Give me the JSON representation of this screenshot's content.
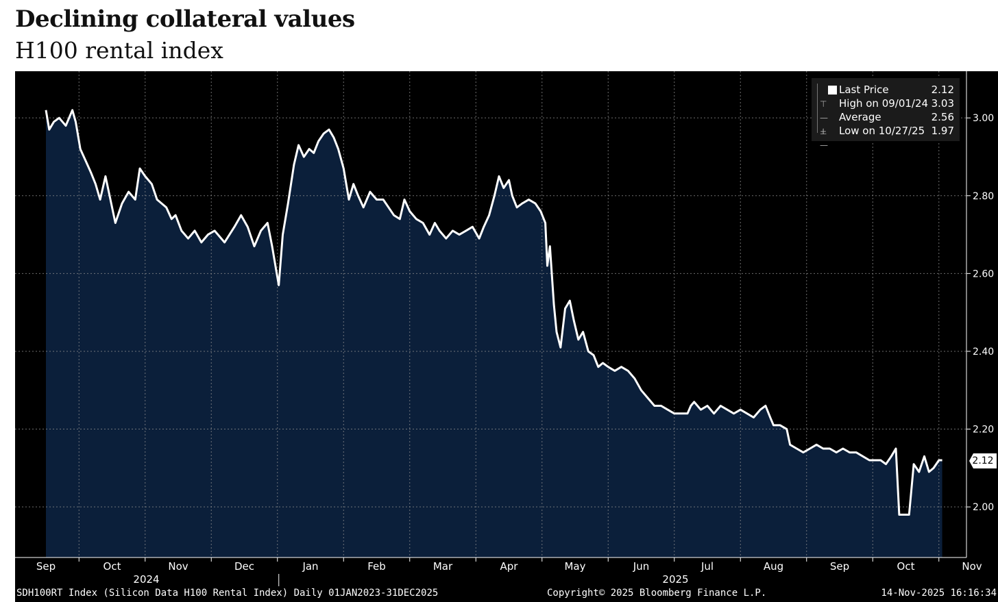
{
  "header": {
    "title": "Declining collateral values",
    "subtitle": "H100 rental index"
  },
  "legend": {
    "items": [
      {
        "label": "Last Price",
        "value": "2.12"
      },
      {
        "label": "High on 09/01/24",
        "value": "3.03"
      },
      {
        "label": "Average",
        "value": "2.56"
      },
      {
        "label": "Low on 10/27/25",
        "value": "1.97"
      }
    ]
  },
  "last_badge": "2.12",
  "footer": {
    "left": "SDH100RT Index (Silicon Data H100 Rental Index) Daily 01JAN2023-31DEC2025",
    "center": "Copyright© 2025 Bloomberg Finance L.P.",
    "right": "14-Nov-2025 16:16:34"
  },
  "colors": {
    "background": "#000000",
    "area_fill": "#0b1f3a",
    "line": "#ffffff",
    "grid": "#8a8a8a"
  },
  "chart_data": {
    "type": "area",
    "title": "Declining collateral values",
    "subtitle": "H100 rental index",
    "y_ticks": [
      2.0,
      2.2,
      2.4,
      2.6,
      2.8,
      3.0
    ],
    "ylim": [
      1.87,
      3.12
    ],
    "y_axis_side": "right",
    "grid": true,
    "legend_position": "top-right",
    "x_tick_labels": [
      "Sep",
      "Oct",
      "Nov",
      "Dec",
      "Jan",
      "Feb",
      "Mar",
      "Apr",
      "May",
      "Jun",
      "Jul",
      "Aug",
      "Sep",
      "Oct",
      "Nov"
    ],
    "year_labels": [
      {
        "label": "2024",
        "under_month_index": 1
      },
      {
        "label": "2025",
        "under_month_index": 9
      }
    ],
    "x_month_start": "2024-09-01",
    "series": [
      {
        "name": "Last Price",
        "points": [
          [
            0,
            3.02
          ],
          [
            0.05,
            2.97
          ],
          [
            0.12,
            2.99
          ],
          [
            0.2,
            3.0
          ],
          [
            0.3,
            2.98
          ],
          [
            0.4,
            3.02
          ],
          [
            0.45,
            2.99
          ],
          [
            0.52,
            2.92
          ],
          [
            0.6,
            2.89
          ],
          [
            0.68,
            2.86
          ],
          [
            0.75,
            2.83
          ],
          [
            0.82,
            2.79
          ],
          [
            0.9,
            2.85
          ],
          [
            0.95,
            2.81
          ],
          [
            1.05,
            2.73
          ],
          [
            1.15,
            2.78
          ],
          [
            1.25,
            2.81
          ],
          [
            1.35,
            2.79
          ],
          [
            1.42,
            2.87
          ],
          [
            1.5,
            2.85
          ],
          [
            1.6,
            2.83
          ],
          [
            1.68,
            2.79
          ],
          [
            1.75,
            2.78
          ],
          [
            1.82,
            2.77
          ],
          [
            1.9,
            2.74
          ],
          [
            1.96,
            2.75
          ],
          [
            2.05,
            2.71
          ],
          [
            2.15,
            2.69
          ],
          [
            2.25,
            2.71
          ],
          [
            2.35,
            2.68
          ],
          [
            2.45,
            2.7
          ],
          [
            2.55,
            2.71
          ],
          [
            2.7,
            2.68
          ],
          [
            2.85,
            2.72
          ],
          [
            2.95,
            2.75
          ],
          [
            3.05,
            2.72
          ],
          [
            3.15,
            2.67
          ],
          [
            3.25,
            2.71
          ],
          [
            3.35,
            2.73
          ],
          [
            3.42,
            2.67
          ],
          [
            3.48,
            2.61
          ],
          [
            3.52,
            2.57
          ],
          [
            3.58,
            2.7
          ],
          [
            3.66,
            2.78
          ],
          [
            3.75,
            2.88
          ],
          [
            3.82,
            2.93
          ],
          [
            3.9,
            2.9
          ],
          [
            3.98,
            2.92
          ],
          [
            4.05,
            2.91
          ],
          [
            4.12,
            2.94
          ],
          [
            4.2,
            2.96
          ],
          [
            4.28,
            2.97
          ],
          [
            4.35,
            2.95
          ],
          [
            4.42,
            2.92
          ],
          [
            4.5,
            2.87
          ],
          [
            4.58,
            2.79
          ],
          [
            4.65,
            2.83
          ],
          [
            4.72,
            2.8
          ],
          [
            4.8,
            2.77
          ],
          [
            4.9,
            2.81
          ],
          [
            5.0,
            2.79
          ],
          [
            5.1,
            2.79
          ],
          [
            5.18,
            2.77
          ],
          [
            5.26,
            2.75
          ],
          [
            5.35,
            2.74
          ],
          [
            5.42,
            2.79
          ],
          [
            5.5,
            2.76
          ],
          [
            5.6,
            2.74
          ],
          [
            5.7,
            2.73
          ],
          [
            5.8,
            2.7
          ],
          [
            5.88,
            2.73
          ],
          [
            5.95,
            2.71
          ],
          [
            6.05,
            2.69
          ],
          [
            6.15,
            2.71
          ],
          [
            6.25,
            2.7
          ],
          [
            6.35,
            2.71
          ],
          [
            6.45,
            2.72
          ],
          [
            6.55,
            2.69
          ],
          [
            6.62,
            2.72
          ],
          [
            6.7,
            2.75
          ],
          [
            6.78,
            2.8
          ],
          [
            6.85,
            2.85
          ],
          [
            6.92,
            2.82
          ],
          [
            7.0,
            2.84
          ],
          [
            7.05,
            2.8
          ],
          [
            7.12,
            2.77
          ],
          [
            7.2,
            2.78
          ],
          [
            7.3,
            2.79
          ],
          [
            7.4,
            2.78
          ],
          [
            7.48,
            2.76
          ],
          [
            7.55,
            2.73
          ],
          [
            7.58,
            2.62
          ],
          [
            7.62,
            2.67
          ],
          [
            7.68,
            2.52
          ],
          [
            7.72,
            2.45
          ],
          [
            7.78,
            2.41
          ],
          [
            7.85,
            2.51
          ],
          [
            7.92,
            2.53
          ],
          [
            7.98,
            2.48
          ],
          [
            8.05,
            2.43
          ],
          [
            8.12,
            2.45
          ],
          [
            8.2,
            2.4
          ],
          [
            8.28,
            2.39
          ],
          [
            8.35,
            2.36
          ],
          [
            8.42,
            2.37
          ],
          [
            8.5,
            2.36
          ],
          [
            8.6,
            2.35
          ],
          [
            8.7,
            2.36
          ],
          [
            8.8,
            2.35
          ],
          [
            8.9,
            2.33
          ],
          [
            9.0,
            2.3
          ],
          [
            9.1,
            2.28
          ],
          [
            9.2,
            2.26
          ],
          [
            9.3,
            2.26
          ],
          [
            9.4,
            2.25
          ],
          [
            9.5,
            2.24
          ],
          [
            9.6,
            2.24
          ],
          [
            9.7,
            2.24
          ],
          [
            9.75,
            2.26
          ],
          [
            9.8,
            2.27
          ],
          [
            9.9,
            2.25
          ],
          [
            10.0,
            2.26
          ],
          [
            10.1,
            2.24
          ],
          [
            10.2,
            2.26
          ],
          [
            10.3,
            2.25
          ],
          [
            10.4,
            2.24
          ],
          [
            10.5,
            2.25
          ],
          [
            10.6,
            2.24
          ],
          [
            10.7,
            2.23
          ],
          [
            10.8,
            2.25
          ],
          [
            10.88,
            2.26
          ],
          [
            10.95,
            2.23
          ],
          [
            11.0,
            2.21
          ],
          [
            11.1,
            2.21
          ],
          [
            11.2,
            2.2
          ],
          [
            11.25,
            2.16
          ],
          [
            11.35,
            2.15
          ],
          [
            11.45,
            2.14
          ],
          [
            11.55,
            2.15
          ],
          [
            11.65,
            2.16
          ],
          [
            11.75,
            2.15
          ],
          [
            11.85,
            2.15
          ],
          [
            11.95,
            2.14
          ],
          [
            12.05,
            2.15
          ],
          [
            12.15,
            2.14
          ],
          [
            12.25,
            2.14
          ],
          [
            12.35,
            2.13
          ],
          [
            12.45,
            2.12
          ],
          [
            12.55,
            2.12
          ],
          [
            12.62,
            2.12
          ],
          [
            12.7,
            2.11
          ],
          [
            12.78,
            2.13
          ],
          [
            12.85,
            2.15
          ],
          [
            12.9,
            1.98
          ],
          [
            12.98,
            1.98
          ],
          [
            13.05,
            1.98
          ],
          [
            13.12,
            2.11
          ],
          [
            13.2,
            2.09
          ],
          [
            13.28,
            2.13
          ],
          [
            13.35,
            2.09
          ],
          [
            13.42,
            2.1
          ],
          [
            13.5,
            2.12
          ],
          [
            13.55,
            2.12
          ]
        ]
      }
    ]
  }
}
